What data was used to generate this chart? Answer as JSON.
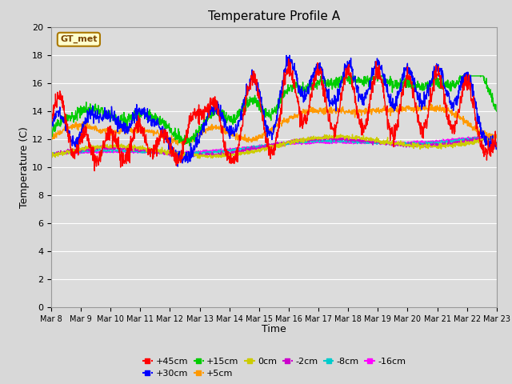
{
  "title": "Temperature Profile A",
  "xlabel": "Time",
  "ylabel": "Temperature (C)",
  "annotation": "GT_met",
  "ylim": [
    0,
    20
  ],
  "series_labels": [
    "+45cm",
    "+30cm",
    "+15cm",
    "+5cm",
    "0cm",
    "-2cm",
    "-8cm",
    "-16cm"
  ],
  "series_colors": [
    "#ff0000",
    "#0000ff",
    "#00cc00",
    "#ff9900",
    "#cccc00",
    "#cc00cc",
    "#00cccc",
    "#ff00ff"
  ],
  "bg_color": "#dcdcdc",
  "grid_color": "#ffffff",
  "x_tick_labels": [
    "Mar 8",
    "Mar 9",
    "Mar 10",
    "Mar 11",
    "Mar 12",
    "Mar 13",
    "Mar 14",
    "Mar 15",
    "Mar 16",
    "Mar 17",
    "Mar 18",
    "Mar 19",
    "Mar 20",
    "Mar 21",
    "Mar 22",
    "Mar 23"
  ],
  "n_points": 1440
}
